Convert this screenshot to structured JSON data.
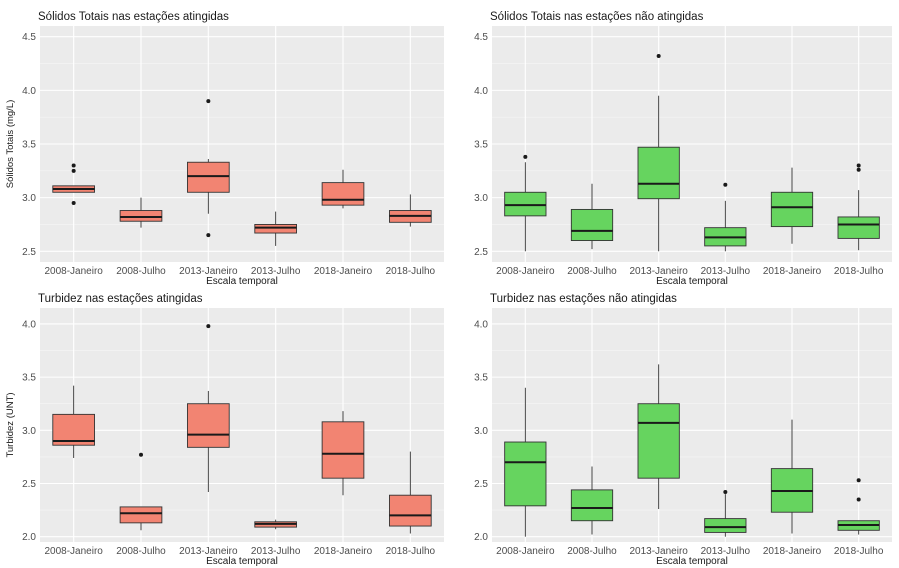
{
  "colors": {
    "affected": "#f28472",
    "unaffected": "#66d45f",
    "panel_bg": "#ebebeb",
    "grid": "#ffffff"
  },
  "chart_data": [
    {
      "type": "boxplot",
      "title": "Sólidos Totais nas estações atingidas",
      "xlabel": "Escala temporal",
      "ylabel": "Sólidos Totais (mg/L)",
      "ylim": [
        2.4,
        4.6
      ],
      "yticks": [
        "2.5",
        "3.0",
        "3.5",
        "4.0",
        "4.5"
      ],
      "categories": [
        "2008-Janeiro",
        "2008-Julho",
        "2013-Janeiro",
        "2013-Julho",
        "2018-Janeiro",
        "2018-Julho"
      ],
      "fill": "affected",
      "boxes": [
        {
          "category": "2008-Janeiro",
          "whisker_low": 3.05,
          "q1": 3.05,
          "median": 3.08,
          "q3": 3.11,
          "whisker_high": 3.11,
          "outliers": [
            2.95,
            3.25,
            3.3
          ]
        },
        {
          "category": "2008-Julho",
          "whisker_low": 2.72,
          "q1": 2.78,
          "median": 2.82,
          "q3": 2.88,
          "whisker_high": 3.0,
          "outliers": []
        },
        {
          "category": "2013-Janeiro",
          "whisker_low": 2.85,
          "q1": 3.05,
          "median": 3.2,
          "q3": 3.33,
          "whisker_high": 3.36,
          "outliers": [
            2.65,
            3.9
          ]
        },
        {
          "category": "2013-Julho",
          "whisker_low": 2.55,
          "q1": 2.67,
          "median": 2.72,
          "q3": 2.75,
          "whisker_high": 2.87,
          "outliers": []
        },
        {
          "category": "2018-Janeiro",
          "whisker_low": 2.9,
          "q1": 2.93,
          "median": 2.98,
          "q3": 3.14,
          "whisker_high": 3.26,
          "outliers": []
        },
        {
          "category": "2018-Julho",
          "whisker_low": 2.73,
          "q1": 2.77,
          "median": 2.83,
          "q3": 2.88,
          "whisker_high": 3.03,
          "outliers": []
        }
      ]
    },
    {
      "type": "boxplot",
      "title": "Sólidos Totais nas estações não atingidas",
      "xlabel": "Escala temporal",
      "ylabel": "",
      "ylim": [
        2.4,
        4.6
      ],
      "yticks": [
        "2.5",
        "3.0",
        "3.5",
        "4.0",
        "4.5"
      ],
      "categories": [
        "2008-Janeiro",
        "2008-Julho",
        "2013-Janeiro",
        "2013-Julho",
        "2018-Janeiro",
        "2018-Julho"
      ],
      "fill": "unaffected",
      "boxes": [
        {
          "category": "2008-Janeiro",
          "whisker_low": 2.5,
          "q1": 2.83,
          "median": 2.93,
          "q3": 3.05,
          "whisker_high": 3.33,
          "outliers": [
            3.38
          ]
        },
        {
          "category": "2008-Julho",
          "whisker_low": 2.52,
          "q1": 2.6,
          "median": 2.69,
          "q3": 2.89,
          "whisker_high": 3.13,
          "outliers": []
        },
        {
          "category": "2013-Janeiro",
          "whisker_low": 2.5,
          "q1": 2.99,
          "median": 3.13,
          "q3": 3.47,
          "whisker_high": 3.95,
          "outliers": [
            4.32
          ]
        },
        {
          "category": "2013-Julho",
          "whisker_low": 2.5,
          "q1": 2.55,
          "median": 2.63,
          "q3": 2.72,
          "whisker_high": 2.97,
          "outliers": [
            3.12
          ]
        },
        {
          "category": "2018-Janeiro",
          "whisker_low": 2.57,
          "q1": 2.73,
          "median": 2.91,
          "q3": 3.05,
          "whisker_high": 3.28,
          "outliers": []
        },
        {
          "category": "2018-Julho",
          "whisker_low": 2.51,
          "q1": 2.62,
          "median": 2.75,
          "q3": 2.82,
          "whisker_high": 3.07,
          "outliers": [
            3.26,
            3.3
          ]
        }
      ]
    },
    {
      "type": "boxplot",
      "title": "Turbidez nas estações atingidas",
      "xlabel": "Escala temporal",
      "ylabel": "Turbidez (UNT)",
      "ylim": [
        1.95,
        4.15
      ],
      "yticks": [
        "2.0",
        "2.5",
        "3.0",
        "3.5",
        "4.0"
      ],
      "categories": [
        "2008-Janeiro",
        "2008-Julho",
        "2013-Janeiro",
        "2013-Julho",
        "2018-Janeiro",
        "2018-Julho"
      ],
      "fill": "affected",
      "boxes": [
        {
          "category": "2008-Janeiro",
          "whisker_low": 2.74,
          "q1": 2.86,
          "median": 2.9,
          "q3": 3.15,
          "whisker_high": 3.42,
          "outliers": []
        },
        {
          "category": "2008-Julho",
          "whisker_low": 2.06,
          "q1": 2.13,
          "median": 2.22,
          "q3": 2.28,
          "whisker_high": 2.28,
          "outliers": [
            2.77
          ]
        },
        {
          "category": "2013-Janeiro",
          "whisker_low": 2.42,
          "q1": 2.84,
          "median": 2.96,
          "q3": 3.25,
          "whisker_high": 3.37,
          "outliers": [
            3.98
          ]
        },
        {
          "category": "2013-Julho",
          "whisker_low": 2.07,
          "q1": 2.09,
          "median": 2.12,
          "q3": 2.14,
          "whisker_high": 2.16,
          "outliers": []
        },
        {
          "category": "2018-Janeiro",
          "whisker_low": 2.39,
          "q1": 2.55,
          "median": 2.78,
          "q3": 3.08,
          "whisker_high": 3.18,
          "outliers": []
        },
        {
          "category": "2018-Julho",
          "whisker_low": 2.03,
          "q1": 2.1,
          "median": 2.2,
          "q3": 2.39,
          "whisker_high": 2.8,
          "outliers": []
        }
      ]
    },
    {
      "type": "boxplot",
      "title": "Turbidez nas estações não atingidas",
      "xlabel": "Escala temporal",
      "ylabel": "",
      "ylim": [
        1.95,
        4.15
      ],
      "yticks": [
        "2.0",
        "2.5",
        "3.0",
        "3.5",
        "4.0"
      ],
      "categories": [
        "2008-Janeiro",
        "2008-Julho",
        "2013-Janeiro",
        "2013-Julho",
        "2018-Janeiro",
        "2018-Julho"
      ],
      "fill": "unaffected",
      "boxes": [
        {
          "category": "2008-Janeiro",
          "whisker_low": 2.0,
          "q1": 2.29,
          "median": 2.7,
          "q3": 2.89,
          "whisker_high": 3.4,
          "outliers": []
        },
        {
          "category": "2008-Julho",
          "whisker_low": 2.02,
          "q1": 2.15,
          "median": 2.27,
          "q3": 2.44,
          "whisker_high": 2.66,
          "outliers": []
        },
        {
          "category": "2013-Janeiro",
          "whisker_low": 2.26,
          "q1": 2.55,
          "median": 3.07,
          "q3": 3.25,
          "whisker_high": 3.62,
          "outliers": []
        },
        {
          "category": "2013-Julho",
          "whisker_low": 2.0,
          "q1": 2.04,
          "median": 2.09,
          "q3": 2.17,
          "whisker_high": 2.4,
          "outliers": [
            2.42
          ]
        },
        {
          "category": "2018-Janeiro",
          "whisker_low": 2.03,
          "q1": 2.23,
          "median": 2.43,
          "q3": 2.64,
          "whisker_high": 3.1,
          "outliers": []
        },
        {
          "category": "2018-Julho",
          "whisker_low": 2.02,
          "q1": 2.06,
          "median": 2.11,
          "q3": 2.15,
          "whisker_high": 2.15,
          "outliers": [
            2.35,
            2.53
          ]
        }
      ]
    }
  ]
}
